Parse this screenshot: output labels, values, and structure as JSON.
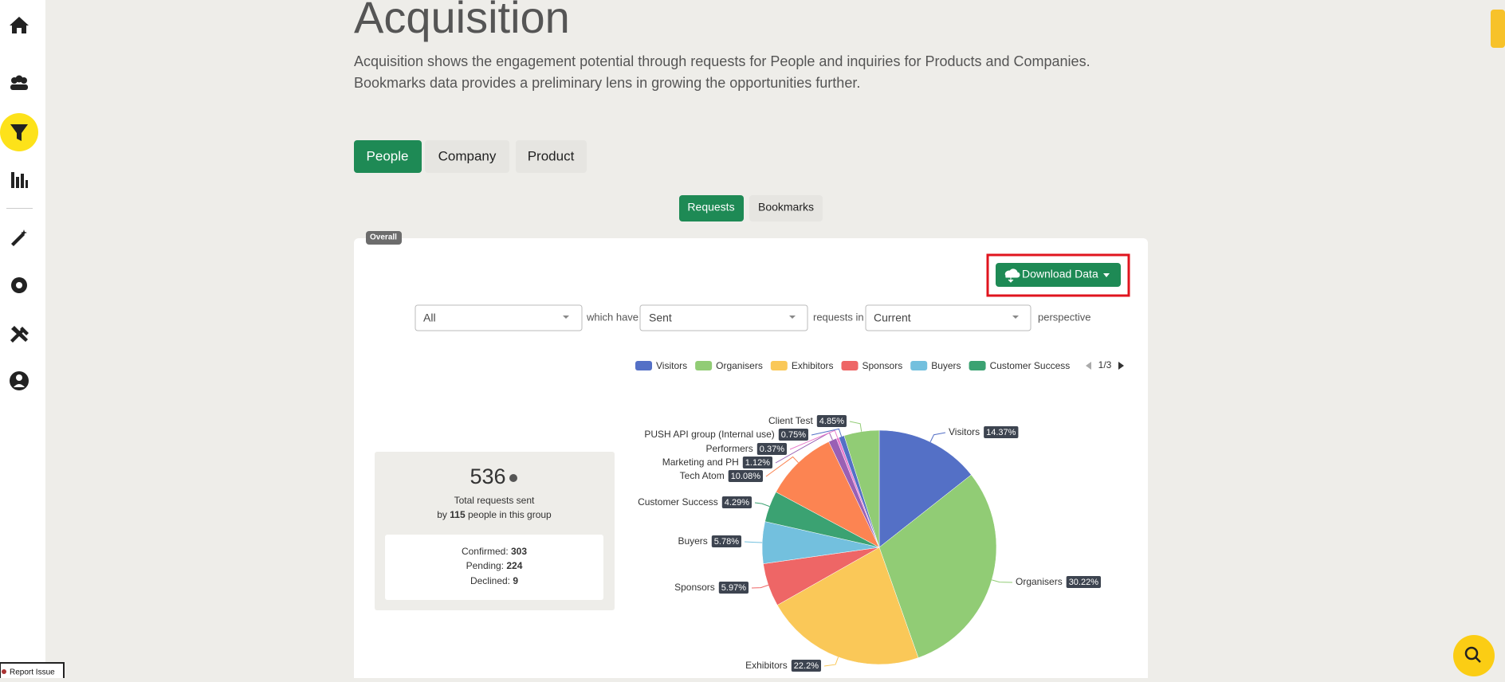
{
  "header": {
    "title": "Acquisition",
    "description": [
      "Acquisition shows the engagement potential through requests for People and inquiries for Products and Companies.",
      "Bookmarks data provides a preliminary lens in growing the opportunities further."
    ]
  },
  "tabs": [
    "People",
    "Company",
    "Product"
  ],
  "subtabs": [
    "Requests",
    "Bookmarks"
  ],
  "card": {
    "badge": "Overall",
    "download": "Download Data",
    "filters": {
      "first": "All",
      "which": "which have",
      "second": "Sent",
      "requests_in": "requests in",
      "third": "Current",
      "perspective": "perspective"
    },
    "legend_page": "1/3",
    "stats": {
      "total": 536,
      "total_label": "Total requests sent",
      "by": "by",
      "people": 115,
      "people_label": "people in this group",
      "confirmed_label": "Confirmed:",
      "confirmed": 303,
      "pending_label": "Pending:",
      "pending": 224,
      "declined_label": "Declined:",
      "declined": 9
    }
  },
  "chart_data": {
    "type": "pie",
    "categories": [
      "Visitors",
      "Organisers",
      "Exhibitors",
      "Sponsors",
      "Buyers",
      "Customer Success",
      "Tech Atom",
      "Marketing and PH",
      "Performers",
      "PUSH API group (Internal use)",
      "Client Test"
    ],
    "values": [
      14.37,
      30.22,
      22.2,
      5.97,
      5.78,
      4.29,
      10.08,
      1.12,
      0.37,
      0.75,
      4.85
    ],
    "value_labels": [
      "14.37%",
      "30.22%",
      "22.2%",
      "5.97%",
      "5.78%",
      "4.29%",
      "10.08%",
      "1.12%",
      "0.37%",
      "0.75%",
      "4.85%"
    ],
    "colors": [
      "#5470c6",
      "#91cc75",
      "#fac858",
      "#ee6666",
      "#73c0de",
      "#3ba272",
      "#fc8452",
      "#9a60b4",
      "#ea7ccc",
      "#5470c6",
      "#91cc75"
    ]
  },
  "report_issue": "Report Issue"
}
